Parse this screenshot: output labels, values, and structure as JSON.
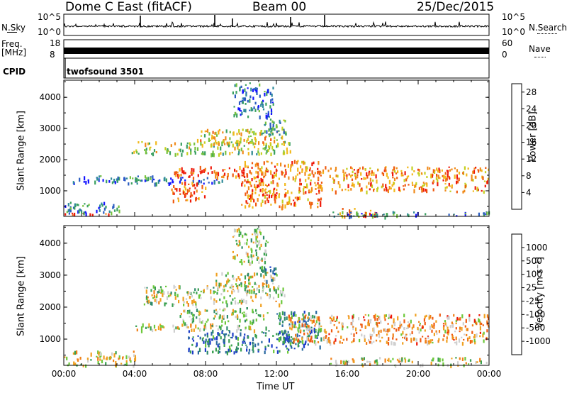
{
  "header": {
    "station": "Dome C East (fitACF)",
    "beam": "Beam 00",
    "date": "25/Dec/2015"
  },
  "aux": {
    "nsky_label": "N.Sky",
    "nsearch_label": "N.Search",
    "noise_top": "10^5",
    "noise_bottom": "10^0",
    "freq_label": "Freq.",
    "freq_unit": "[MHz]",
    "freq_top": "18",
    "freq_bottom": "8",
    "nave_label": "Nave",
    "nave_top": "60",
    "nave_bottom": "0",
    "cpid_label": "CPID",
    "cpid_value": "twofsound 3501"
  },
  "chart_data": [
    {
      "type": "heatmap",
      "panel": "power",
      "ylabel": "Slant Range [km]",
      "xlabel": "",
      "x_ticks": [
        "00:00",
        "04:00",
        "08:00",
        "12:00",
        "16:00",
        "20:00",
        "00:00"
      ],
      "y_ticks": [
        "1000",
        "2000",
        "3000",
        "4000"
      ],
      "ylim": [
        180,
        4550
      ],
      "colorbar": {
        "label": "Power [dB]",
        "ticks": [
          "4",
          "8",
          "12",
          "16",
          "20",
          "24",
          "28"
        ],
        "range": [
          0,
          30
        ],
        "colors": [
          "#1515ff",
          "#2a5cc0",
          "#2f8a9a",
          "#3aa060",
          "#77c23e",
          "#c4cf1e",
          "#f2b81b",
          "#f08a1a",
          "#ef5a10",
          "#ee1a0a"
        ]
      },
      "regions": [
        {
          "t0": 0.0,
          "t1": 3.0,
          "r0": 200,
          "r1": 300,
          "level": 0.95
        },
        {
          "t0": 0.0,
          "t1": 3.2,
          "r0": 300,
          "r1": 650,
          "level": 0.2
        },
        {
          "t0": 0.2,
          "t1": 9.0,
          "r0": 1250,
          "r1": 1450,
          "level": 0.15
        },
        {
          "t0": 3.8,
          "t1": 12.8,
          "r0": 2200,
          "r1": 2600,
          "level": 0.5
        },
        {
          "t0": 6.2,
          "t1": 12.0,
          "r0": 1450,
          "r1": 1800,
          "level": 0.85
        },
        {
          "t0": 7.5,
          "t1": 12.5,
          "r0": 2500,
          "r1": 3000,
          "level": 0.6
        },
        {
          "t0": 10.0,
          "t1": 14.5,
          "r0": 500,
          "r1": 2000,
          "level": 0.8
        },
        {
          "t0": 6.0,
          "t1": 8.0,
          "r0": 700,
          "r1": 1300,
          "level": 0.85
        },
        {
          "t0": 1.0,
          "t1": 5.0,
          "r0": 1300,
          "r1": 1500,
          "level": 0.25
        },
        {
          "t0": 15.2,
          "t1": 17.8,
          "r0": 200,
          "r1": 500,
          "level": 0.75
        },
        {
          "t0": 15.0,
          "t1": 24.0,
          "r0": 200,
          "r1": 350,
          "level": 0.25
        },
        {
          "t0": 13.5,
          "t1": 24.0,
          "r0": 1000,
          "r1": 1800,
          "level": 0.75
        },
        {
          "t0": 11.0,
          "t1": 12.5,
          "r0": 2800,
          "r1": 3400,
          "level": 0.35
        },
        {
          "t0": 9.5,
          "t1": 11.8,
          "r0": 3400,
          "r1": 4500,
          "level": 0.2
        }
      ]
    },
    {
      "type": "heatmap",
      "panel": "velocity",
      "ylabel": "Slant Range [km]",
      "xlabel": "Time UT",
      "x_ticks": [
        "00:00",
        "04:00",
        "08:00",
        "12:00",
        "16:00",
        "20:00",
        "00:00"
      ],
      "y_ticks": [
        "1000",
        "2000",
        "3000",
        "4000"
      ],
      "ylim": [
        180,
        4550
      ],
      "colorbar": {
        "label": "Velocity [m s⁻¹]",
        "ticks": [
          "1000",
          "500",
          "100",
          "25",
          "-25",
          "-100",
          "-500",
          "-1000"
        ],
        "range": [
          -1200,
          1200
        ],
        "colors": [
          "#1b3cc8",
          "#2a6aa0",
          "#2f8a6a",
          "#3aa050",
          "#6cc83a",
          "#cfcfcf",
          "#f0a020",
          "#f08018",
          "#ef5a10",
          "#ee1a0a"
        ]
      },
      "regions": [
        {
          "t0": 0.0,
          "t1": 4.0,
          "r0": 200,
          "r1": 650,
          "level": 0.55
        },
        {
          "t0": 4.5,
          "t1": 12.5,
          "r0": 2100,
          "r1": 2700,
          "level": 0.5
        },
        {
          "t0": 4.0,
          "t1": 11.5,
          "r0": 1300,
          "r1": 1500,
          "level": 0.5
        },
        {
          "t0": 6.5,
          "t1": 11.5,
          "r0": 1500,
          "r1": 2000,
          "level": 0.45
        },
        {
          "t0": 7.0,
          "t1": 12.8,
          "r0": 600,
          "r1": 1300,
          "level": 0.2
        },
        {
          "t0": 8.5,
          "t1": 12.0,
          "r0": 2500,
          "r1": 3100,
          "level": 0.5
        },
        {
          "t0": 12.0,
          "t1": 14.5,
          "r0": 700,
          "r1": 1900,
          "level": 0.2
        },
        {
          "t0": 12.5,
          "t1": 24.0,
          "r0": 900,
          "r1": 1800,
          "level": 0.7
        },
        {
          "t0": 15.0,
          "t1": 24.0,
          "r0": 200,
          "r1": 450,
          "level": 0.55
        },
        {
          "t0": 11.0,
          "t1": 12.0,
          "r0": 2800,
          "r1": 3300,
          "level": 0.2
        },
        {
          "t0": 9.5,
          "t1": 11.5,
          "r0": 3400,
          "r1": 4500,
          "level": 0.5
        }
      ]
    }
  ]
}
